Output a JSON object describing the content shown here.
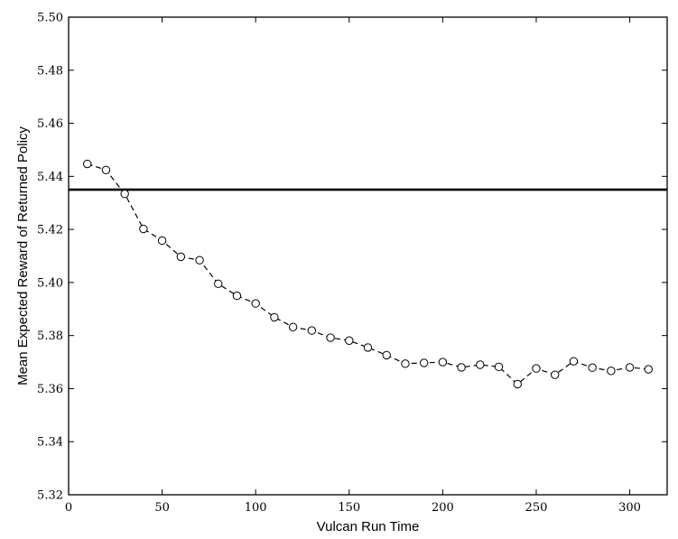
{
  "chart_data": {
    "type": "line",
    "title": "",
    "xlabel": "Vulcan Run Time",
    "ylabel": "Mean Expected Reward of Returned Policy",
    "xlim": [
      0,
      320
    ],
    "ylim": [
      5.32,
      5.5
    ],
    "xticks": [
      0,
      50,
      100,
      150,
      200,
      250,
      300
    ],
    "yticks": [
      5.32,
      5.34,
      5.36,
      5.38,
      5.4,
      5.42,
      5.44,
      5.46,
      5.48,
      5.5
    ],
    "xtick_labels": [
      "0",
      "50",
      "100",
      "150",
      "200",
      "250",
      "300"
    ],
    "ytick_labels": [
      "5.32",
      "5.34",
      "5.36",
      "5.38",
      "5.40",
      "5.42",
      "5.44",
      "5.46",
      "5.48",
      "5.50"
    ],
    "grid": false,
    "legend": "none",
    "series": [
      {
        "style": "dashed line with open circle markers",
        "color": "#000000",
        "x": [
          10,
          20,
          30,
          40,
          50,
          60,
          70,
          80,
          90,
          100,
          110,
          120,
          130,
          140,
          150,
          160,
          170,
          180,
          190,
          200,
          210,
          220,
          230,
          240,
          250,
          260,
          270,
          280,
          290,
          300,
          310
        ],
        "y": [
          5.4447,
          5.4424,
          5.4334,
          5.4202,
          5.4158,
          5.4097,
          5.4084,
          5.3995,
          5.395,
          5.3921,
          5.3869,
          5.3832,
          5.3819,
          5.3792,
          5.3781,
          5.3755,
          5.3726,
          5.3694,
          5.3697,
          5.37,
          5.368,
          5.369,
          5.3682,
          5.3617,
          5.3676,
          5.3652,
          5.3703,
          5.3679,
          5.3667,
          5.368,
          5.3673
        ]
      }
    ],
    "reference_lines": [
      {
        "orientation": "horizontal",
        "y": 5.435,
        "color": "#000000",
        "style": "solid"
      }
    ]
  }
}
